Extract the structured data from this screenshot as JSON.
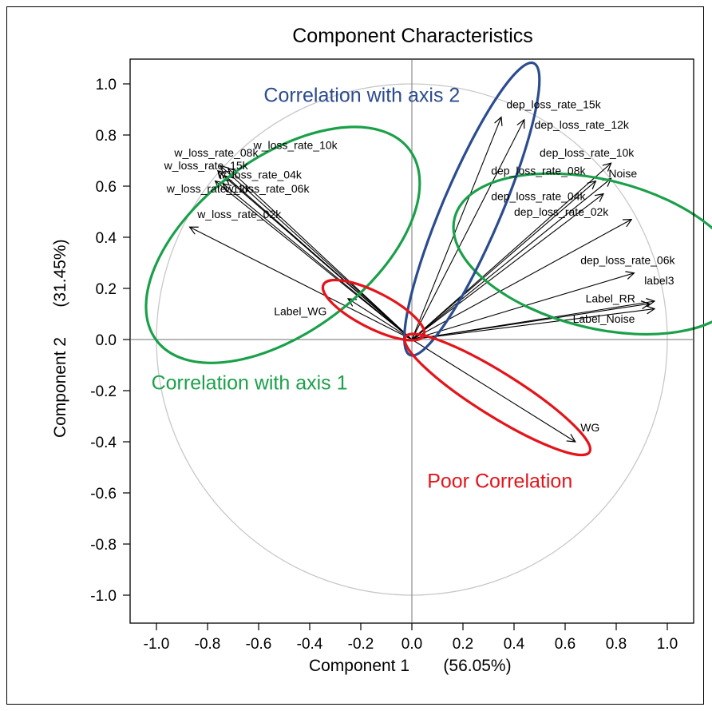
{
  "chart_data": {
    "type": "scatter",
    "subtype": "pca-loadings-biplot",
    "title": "Component Characteristics",
    "xlabel": "Component 1",
    "xlabel_pct": "(56.05%)",
    "ylabel": "Component 2",
    "ylabel_pct": "(31.45%)",
    "xlim": [
      -1.1,
      1.1
    ],
    "ylim": [
      -1.1,
      1.1
    ],
    "xticks": [
      -1.0,
      -0.8,
      -0.6,
      -0.4,
      -0.2,
      0.0,
      0.2,
      0.4,
      0.6,
      0.8,
      1.0
    ],
    "yticks": [
      1.0,
      0.8,
      0.6,
      0.4,
      0.2,
      0.0,
      -0.2,
      -0.4,
      -0.6,
      -0.8,
      -1.0
    ],
    "xtick_labels": [
      "-1.0",
      "-0.8",
      "-0.6",
      "-0.4",
      "-0.2",
      "0.0",
      "0.2",
      "0.4",
      "0.6",
      "0.8",
      "1.0"
    ],
    "ytick_labels": [
      "1.0",
      "0.8",
      "0.6",
      "0.4",
      "0.2",
      "0.0",
      "-0.2",
      "-0.4",
      "-0.6",
      "-0.8",
      "-1.0"
    ],
    "unit_circle": true,
    "vectors": [
      {
        "name": "w_loss_rate_08k",
        "x": -0.75,
        "y": 0.68
      },
      {
        "name": "w_loss_rate_10k",
        "x": -0.72,
        "y": 0.67
      },
      {
        "name": "w_loss_rate_15k",
        "x": -0.76,
        "y": 0.66
      },
      {
        "name": "w_loss_rate_04k",
        "x": -0.73,
        "y": 0.64
      },
      {
        "name": "w_loss_rate_12k",
        "x": -0.77,
        "y": 0.62
      },
      {
        "name": "w_loss_rate_06k",
        "x": -0.74,
        "y": 0.61
      },
      {
        "name": "w_loss_rate_02k",
        "x": -0.87,
        "y": 0.44
      },
      {
        "name": "Label_WG",
        "x": -0.25,
        "y": 0.16
      },
      {
        "name": "dep_loss_rate_15k",
        "x": 0.35,
        "y": 0.87
      },
      {
        "name": "dep_loss_rate_12k",
        "x": 0.44,
        "y": 0.86
      },
      {
        "name": "dep_loss_rate_10k",
        "x": 0.78,
        "y": 0.69
      },
      {
        "name": "dep_loss_rate_08k",
        "x": 0.72,
        "y": 0.62
      },
      {
        "name": "Noise",
        "x": 0.78,
        "y": 0.63
      },
      {
        "name": "dep_loss_rate_04k",
        "x": 0.75,
        "y": 0.57
      },
      {
        "name": "dep_loss_rate_02k",
        "x": 0.86,
        "y": 0.47
      },
      {
        "name": "dep_loss_rate_06k",
        "x": 0.87,
        "y": 0.26
      },
      {
        "name": "label3",
        "x": 0.95,
        "y": 0.15
      },
      {
        "name": "Label_RR",
        "x": 0.93,
        "y": 0.14
      },
      {
        "name": "Label_Noise",
        "x": 0.95,
        "y": 0.12
      },
      {
        "name": "WG",
        "x": 0.64,
        "y": -0.4
      }
    ],
    "vector_labels": [
      {
        "text": "w_loss_rate_10k",
        "x": -0.62,
        "y": 0.745
      },
      {
        "text": "w_loss_rate_08k",
        "x": -0.93,
        "y": 0.715
      },
      {
        "text": "w_loss_rate_15k",
        "x": -0.97,
        "y": 0.665
      },
      {
        "text": "w_loss_rate_04k",
        "x": -0.76,
        "y": 0.63
      },
      {
        "text": "w_loss_rate_12k",
        "x": -0.96,
        "y": 0.575
      },
      {
        "text": "w_loss_rate_06k",
        "x": -0.73,
        "y": 0.575
      },
      {
        "text": "w_loss_rate_02k",
        "x": -0.84,
        "y": 0.475
      },
      {
        "text": "Label_WG",
        "x": -0.54,
        "y": 0.095
      },
      {
        "text": "dep_loss_rate_15k",
        "x": 0.37,
        "y": 0.905
      },
      {
        "text": "dep_loss_rate_12k",
        "x": 0.48,
        "y": 0.825
      },
      {
        "text": "dep_loss_rate_10k",
        "x": 0.5,
        "y": 0.715
      },
      {
        "text": "dep_loss_rate_08k",
        "x": 0.31,
        "y": 0.645
      },
      {
        "text": "Noise",
        "x": 0.77,
        "y": 0.635
      },
      {
        "text": "dep_loss_rate_04k",
        "x": 0.31,
        "y": 0.545
      },
      {
        "text": "dep_loss_rate_02k",
        "x": 0.4,
        "y": 0.485
      },
      {
        "text": "dep_loss_rate_06k",
        "x": 0.66,
        "y": 0.295
      },
      {
        "text": "label3",
        "x": 0.91,
        "y": 0.215
      },
      {
        "text": "Label_RR",
        "x": 0.68,
        "y": 0.145
      },
      {
        "text": "Label_Noise",
        "x": 0.63,
        "y": 0.065
      },
      {
        "text": "WG",
        "x": 0.66,
        "y": -0.36
      }
    ],
    "groups": [
      {
        "label": "Correlation with axis 1",
        "color": "#1ba04a",
        "label_x": -1.02,
        "label_y": -0.195
      },
      {
        "label": "Correlation with axis 2",
        "color": "#2b4c8e",
        "label_x": -0.58,
        "label_y": 0.93
      },
      {
        "label": "Poor Correlation",
        "color": "#e3151b",
        "label_x": 0.06,
        "label_y": -0.58
      }
    ],
    "ellipses": [
      {
        "group": 0,
        "cx": -0.505,
        "cy": 0.37,
        "rx": 0.62,
        "ry": 0.34,
        "angle": 37
      },
      {
        "group": 0,
        "cx": 0.73,
        "cy": 0.335,
        "rx": 0.58,
        "ry": 0.29,
        "angle": -14
      },
      {
        "group": 1,
        "cx": 0.235,
        "cy": 0.51,
        "rx": 0.62,
        "ry": 0.115,
        "angle": 67
      },
      {
        "group": 2,
        "cx": -0.15,
        "cy": 0.115,
        "rx": 0.22,
        "ry": 0.07,
        "angle": -27
      },
      {
        "group": 2,
        "cx": 0.335,
        "cy": -0.215,
        "rx": 0.425,
        "ry": 0.085,
        "angle": -32
      }
    ]
  }
}
